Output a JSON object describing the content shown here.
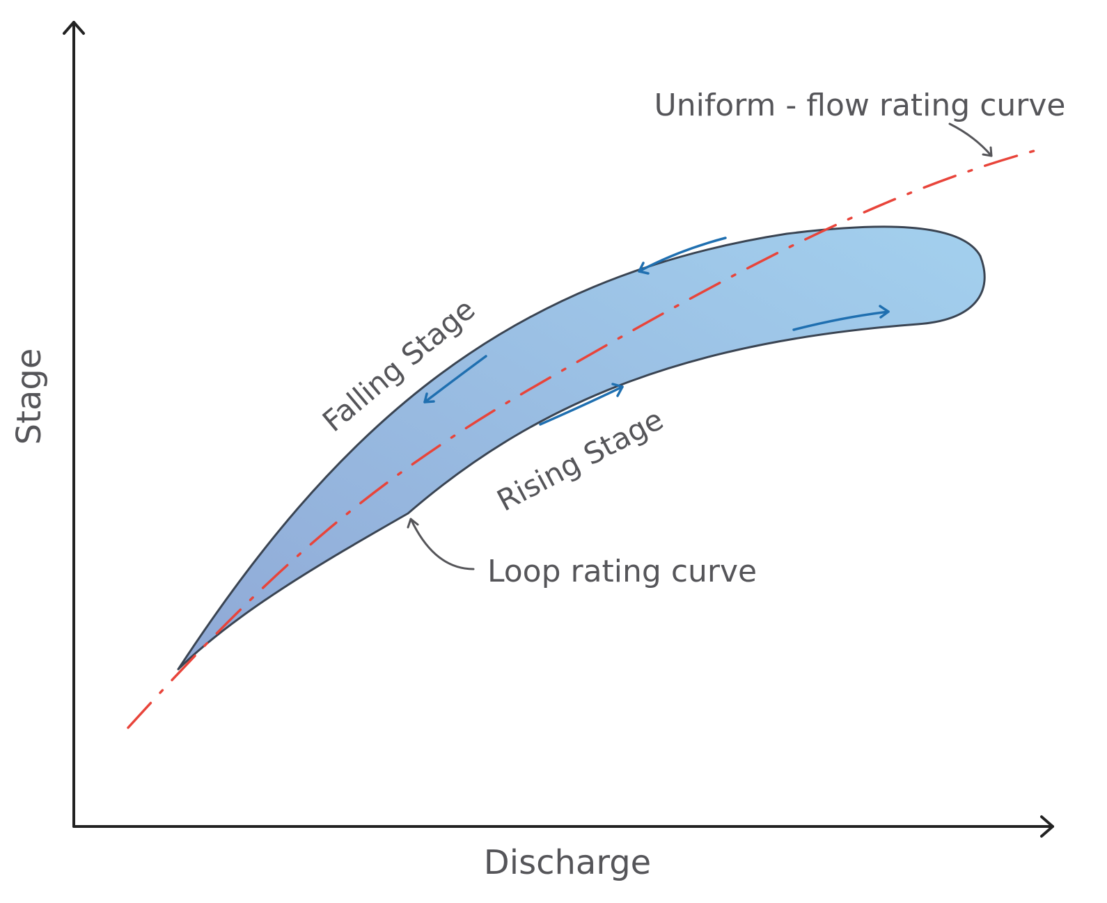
{
  "axes": {
    "x_label": "Discharge",
    "y_label": "Stage"
  },
  "labels": {
    "uniform_curve": "Uniform - flow rating curve",
    "loop_curve": "Loop rating curve",
    "falling_stage": "Falling Stage",
    "rising_stage": "Rising Stage"
  },
  "colors": {
    "loop_fill": "#9cc4e8",
    "loop_outline": "#3a4452",
    "uniform_curve": "#e8443a",
    "direction_arrows": "#1f6fb0",
    "axes": "#222222",
    "text": "#555559"
  }
}
